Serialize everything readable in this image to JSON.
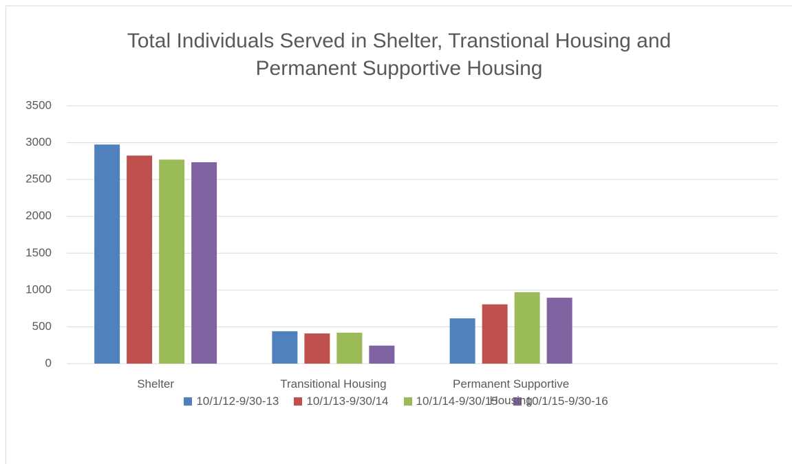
{
  "chart_data": {
    "type": "bar",
    "title": "Total Individuals Served in Shelter, Transtional Housing and Permanent Supportive Housing",
    "categories": [
      "Shelter",
      "Transitional Housing",
      "Permanent Supportive Housing",
      null
    ],
    "series": [
      {
        "name": "10/1/12-9/30-13",
        "color": "#4f81bd",
        "values": [
          2975,
          440,
          615,
          null
        ]
      },
      {
        "name": "10/1/13-9/30/14",
        "color": "#c0504d",
        "values": [
          2825,
          410,
          805,
          null
        ]
      },
      {
        "name": "10/1/14-9/30/15",
        "color": "#9bbb59",
        "values": [
          2770,
          420,
          970,
          null
        ]
      },
      {
        "name": "10/1/15-9/30-16",
        "color": "#8064a2",
        "values": [
          2735,
          245,
          895,
          null
        ]
      }
    ],
    "ylim": [
      0,
      3500
    ],
    "yticks": [
      0,
      500,
      1000,
      1500,
      2000,
      2500,
      3000,
      3500
    ],
    "grid": true,
    "legend": "bottom"
  }
}
